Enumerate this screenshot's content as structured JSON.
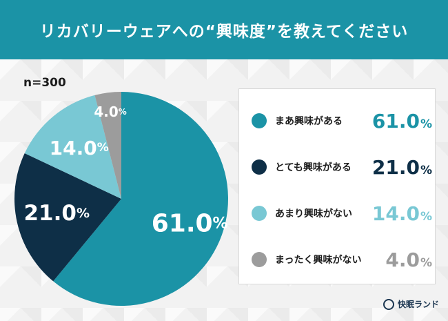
{
  "header": {
    "title": "リカバリーウェアへの“興味度”を教えてください",
    "bg_color": "#1b93a6"
  },
  "sample_note": "n=300",
  "chart_data": {
    "type": "pie",
    "title": "リカバリーウェアへの“興味度”を教えてください",
    "start_angle_deg": 0,
    "direction": "clockwise",
    "slices": [
      {
        "label": "まあ興味がある",
        "value": 61.0,
        "value_text": "61.0",
        "color": "#1b93a6",
        "label_color": "#ffffff"
      },
      {
        "label": "とても興味がある",
        "value": 21.0,
        "value_text": "21.0",
        "color": "#0e2f47",
        "label_color": "#ffffff"
      },
      {
        "label": "あまり興味がない",
        "value": 14.0,
        "value_text": "14.0",
        "color": "#79c8d4",
        "label_color": "#ffffff"
      },
      {
        "label": "まったく興味がない",
        "value": 4.0,
        "value_text": "4.0",
        "color": "#9c9c9c",
        "label_color": "#ffffff"
      }
    ],
    "unit": "%",
    "legend_position": "right"
  },
  "legend": {
    "items": [
      {
        "label": "まあ興味がある",
        "value_text": "61.0",
        "unit": "%",
        "color": "#1b93a6"
      },
      {
        "label": "とても興味がある",
        "value_text": "21.0",
        "unit": "%",
        "color": "#0e2f47"
      },
      {
        "label": "あまり興味がない",
        "value_text": "14.0",
        "unit": "%",
        "color": "#79c8d4"
      },
      {
        "label": "まったく興味がない",
        "value_text": "4.0",
        "unit": "%",
        "color": "#9c9c9c"
      }
    ]
  },
  "footer": {
    "brand": "快眠ランド",
    "brand_icon": "crescent-logo-icon"
  }
}
